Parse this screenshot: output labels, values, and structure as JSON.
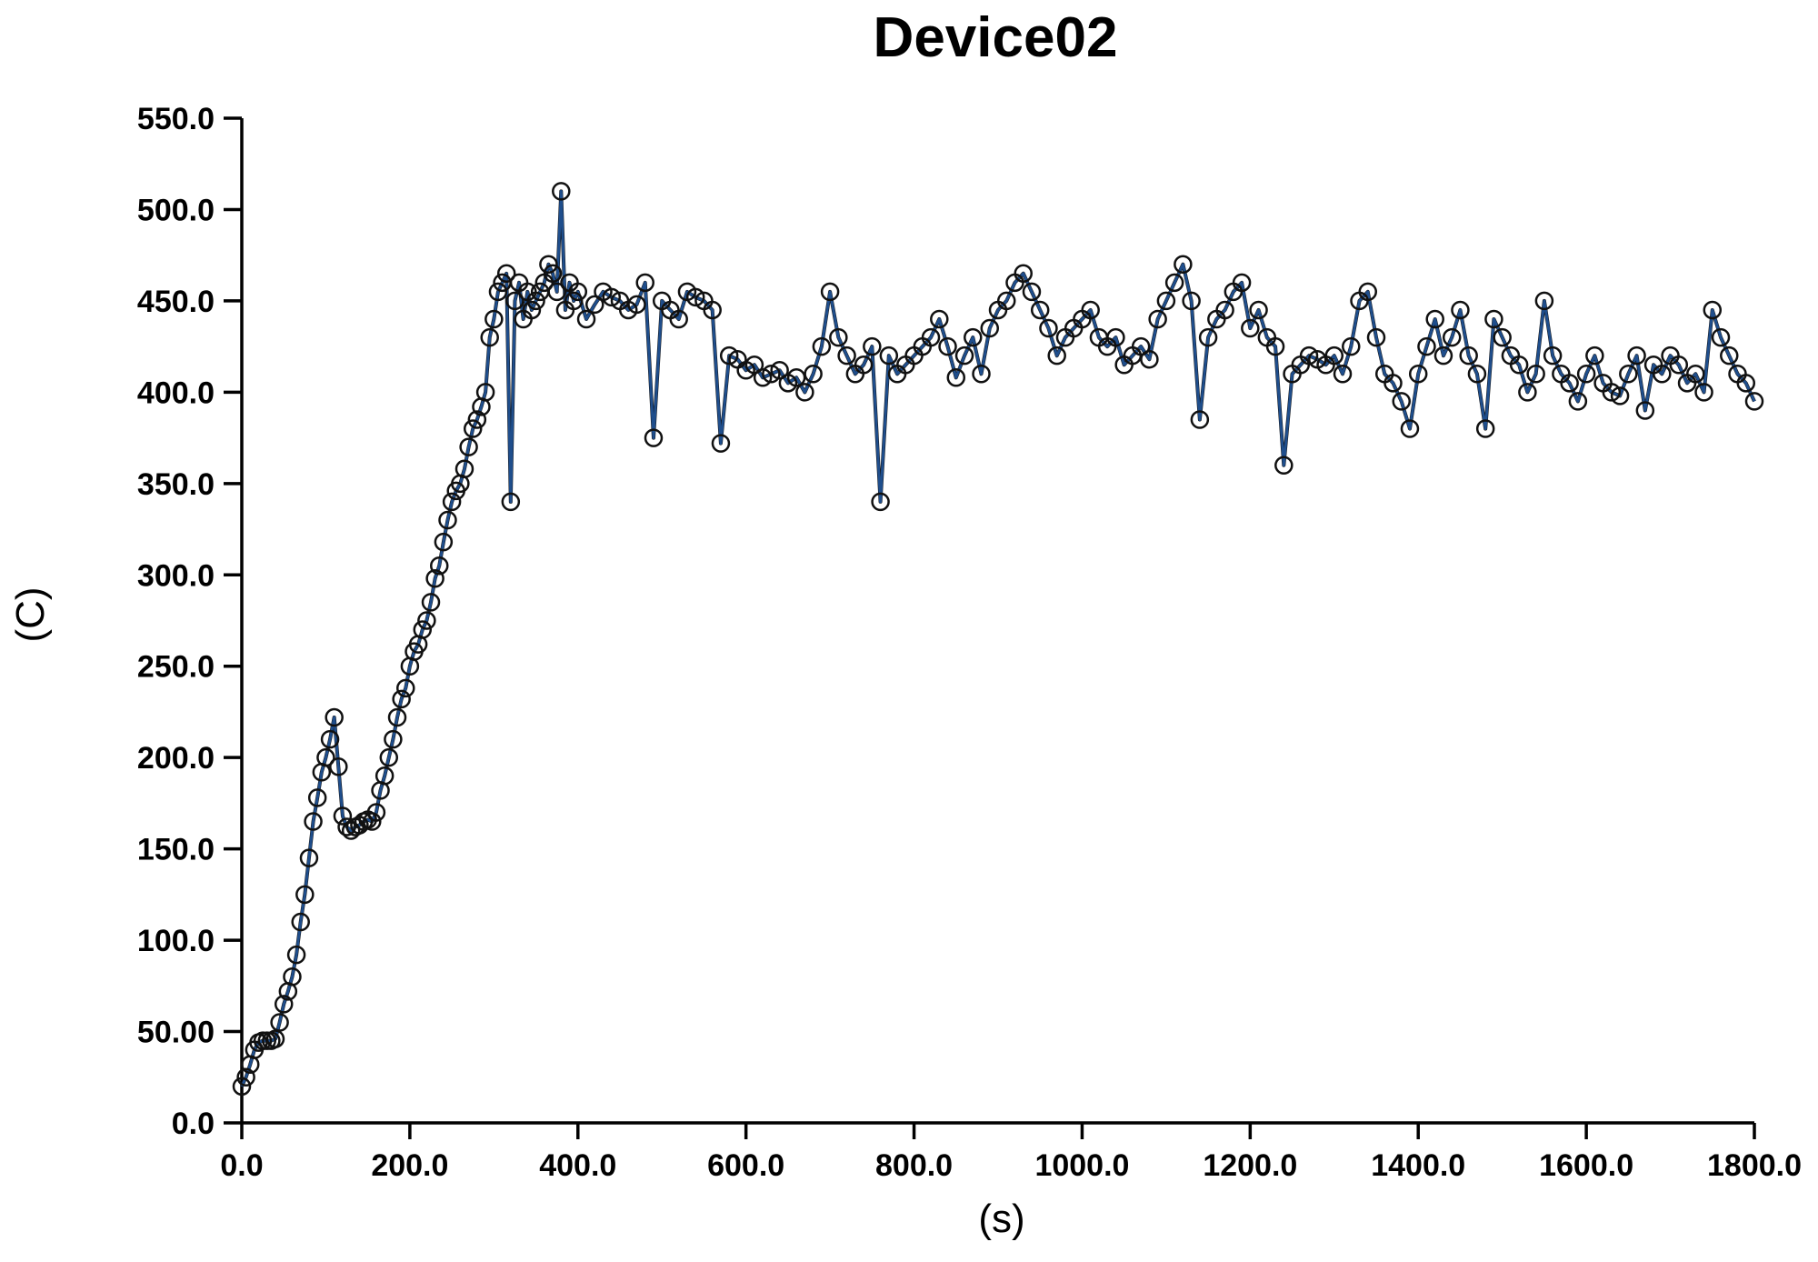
{
  "chart_data": {
    "type": "line",
    "title": "Device02",
    "xlabel": "(s)",
    "ylabel": "(C)",
    "xlim": [
      0,
      1800
    ],
    "ylim": [
      0,
      550
    ],
    "x_ticks": [
      "0.0",
      "200.0",
      "400.0",
      "600.0",
      "800.0",
      "1000.0",
      "1200.0",
      "1400.0",
      "1600.0",
      "1800.0"
    ],
    "y_ticks": [
      "0.0",
      "50.00",
      "100.0",
      "150.0",
      "200.0",
      "250.0",
      "300.0",
      "350.0",
      "400.0",
      "450.0",
      "500.0",
      "550.0"
    ],
    "grid": false,
    "legend": "none",
    "marker": "open-circle",
    "colors": {
      "line": "#1f4e8c",
      "marker": "#111111",
      "spike": "#111111"
    },
    "series": [
      {
        "x": [
          0,
          5,
          10,
          15,
          20,
          25,
          30,
          35,
          40,
          45,
          50,
          55,
          60,
          65,
          70,
          75,
          80,
          85,
          90,
          95,
          100,
          105,
          110,
          115,
          120,
          125,
          130,
          135,
          140,
          145,
          150,
          155,
          160,
          165,
          170,
          175,
          180,
          185,
          190,
          195,
          200,
          205,
          210,
          215,
          220,
          225,
          230,
          235,
          240,
          245,
          250,
          255,
          260,
          265,
          270,
          275,
          280,
          285,
          290,
          295,
          300,
          305,
          310,
          315,
          320,
          325,
          330,
          335,
          340,
          345,
          350,
          355,
          360,
          365,
          370,
          375,
          380,
          385,
          390,
          395,
          400,
          410,
          420,
          430,
          440,
          450,
          460,
          470,
          480,
          490,
          500,
          510,
          520,
          530,
          540,
          550,
          560,
          570,
          580,
          590,
          600,
          610,
          620,
          630,
          640,
          650,
          660,
          670,
          680,
          690,
          700,
          710,
          720,
          730,
          740,
          750,
          760,
          770,
          780,
          790,
          800,
          810,
          820,
          830,
          840,
          850,
          860,
          870,
          880,
          890,
          900,
          910,
          920,
          930,
          940,
          950,
          960,
          970,
          980,
          990,
          1000,
          1010,
          1020,
          1030,
          1040,
          1050,
          1060,
          1070,
          1080,
          1090,
          1100,
          1110,
          1120,
          1130,
          1140,
          1150,
          1160,
          1170,
          1180,
          1190,
          1200,
          1210,
          1220,
          1230,
          1240,
          1250,
          1260,
          1270,
          1280,
          1290,
          1300,
          1310,
          1320,
          1330,
          1340,
          1350,
          1360,
          1370,
          1380,
          1390,
          1400,
          1410,
          1420,
          1430,
          1440,
          1450,
          1460,
          1470,
          1480,
          1490,
          1500,
          1510,
          1520,
          1530,
          1540,
          1550,
          1560,
          1570,
          1580,
          1590,
          1600,
          1610,
          1620,
          1630,
          1640,
          1650,
          1660,
          1670,
          1680,
          1690,
          1700,
          1710,
          1720,
          1730,
          1740,
          1750,
          1760,
          1770,
          1780,
          1790,
          1800
        ],
        "y": [
          20,
          25,
          32,
          40,
          44,
          45,
          45,
          45,
          46,
          55,
          65,
          72,
          80,
          92,
          110,
          125,
          145,
          165,
          178,
          192,
          200,
          210,
          222,
          195,
          168,
          162,
          160,
          162,
          163,
          165,
          166,
          165,
          170,
          182,
          190,
          200,
          210,
          222,
          232,
          238,
          250,
          258,
          262,
          270,
          275,
          285,
          298,
          305,
          318,
          330,
          340,
          346,
          350,
          358,
          370,
          380,
          385,
          392,
          400,
          430,
          440,
          455,
          460,
          465,
          340,
          450,
          460,
          440,
          455,
          445,
          450,
          455,
          460,
          470,
          465,
          455,
          510,
          445,
          460,
          450,
          455,
          440,
          448,
          455,
          452,
          450,
          445,
          448,
          460,
          375,
          450,
          445,
          440,
          455,
          452,
          450,
          445,
          372,
          420,
          418,
          412,
          415,
          408,
          410,
          412,
          405,
          408,
          400,
          410,
          425,
          455,
          430,
          420,
          410,
          415,
          425,
          340,
          420,
          410,
          415,
          420,
          425,
          430,
          440,
          425,
          408,
          420,
          430,
          410,
          435,
          445,
          450,
          460,
          465,
          455,
          445,
          435,
          420,
          430,
          435,
          440,
          445,
          430,
          425,
          430,
          415,
          420,
          425,
          418,
          440,
          450,
          460,
          470,
          450,
          385,
          430,
          440,
          445,
          455,
          460,
          435,
          445,
          430,
          425,
          360,
          410,
          415,
          420,
          418,
          415,
          420,
          410,
          425,
          450,
          455,
          430,
          410,
          405,
          395,
          380,
          410,
          425,
          440,
          420,
          430,
          445,
          420,
          410,
          380,
          440,
          430,
          420,
          415,
          400,
          410,
          450,
          420,
          410,
          405,
          395,
          410,
          420,
          405,
          400,
          398,
          410,
          420,
          390,
          415,
          410,
          420,
          415,
          405,
          410,
          400,
          445,
          430,
          420,
          410,
          405,
          395
        ]
      }
    ]
  }
}
